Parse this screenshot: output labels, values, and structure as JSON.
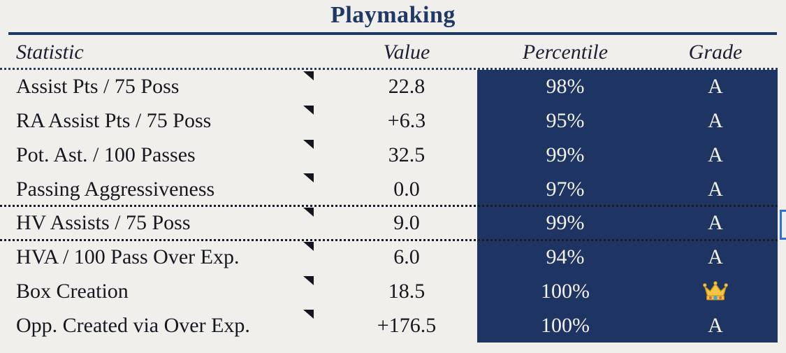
{
  "title": "Playmaking",
  "columns": {
    "statistic": "Statistic",
    "value": "Value",
    "percentile": "Percentile",
    "grade": "Grade"
  },
  "rows": [
    {
      "statistic": "Assist Pts / 75 Poss",
      "value": "22.8",
      "percentile": "98%",
      "grade": "A",
      "has_note": true
    },
    {
      "statistic": "RA Assist Pts / 75 Poss",
      "value": "+6.3",
      "percentile": "95%",
      "grade": "A",
      "has_note": true
    },
    {
      "statistic": "Pot. Ast. / 100 Passes",
      "value": "32.5",
      "percentile": "99%",
      "grade": "A",
      "has_note": true
    },
    {
      "statistic": "Passing Aggressiveness",
      "value": "0.0",
      "percentile": "97%",
      "grade": "A",
      "has_note": true
    },
    {
      "statistic": "HV Assists / 75 Poss",
      "value": "9.0",
      "percentile": "99%",
      "grade": "A",
      "has_note": true,
      "selected": true
    },
    {
      "statistic": "HVA / 100 Pass Over Exp.",
      "value": "6.0",
      "percentile": "94%",
      "grade": "A",
      "has_note": true
    },
    {
      "statistic": "Box Creation",
      "value": "18.5",
      "percentile": "100%",
      "grade": "crown",
      "has_note": true
    },
    {
      "statistic": "Opp. Created via Over Exp.",
      "value": "+176.5",
      "percentile": "100%",
      "grade": "A",
      "has_note": true
    }
  ],
  "selection": {
    "selected_row_statistic": "HV Assists / 75 Poss"
  },
  "colors": {
    "highlight_block": "#1e3563",
    "title_navy": "#1f3864",
    "background": "#f0efec",
    "light_text": "#f3f1e9",
    "dark_text": "#17171f",
    "selection_blue": "#2f6fd9",
    "crown_gold": "#f6c544"
  }
}
